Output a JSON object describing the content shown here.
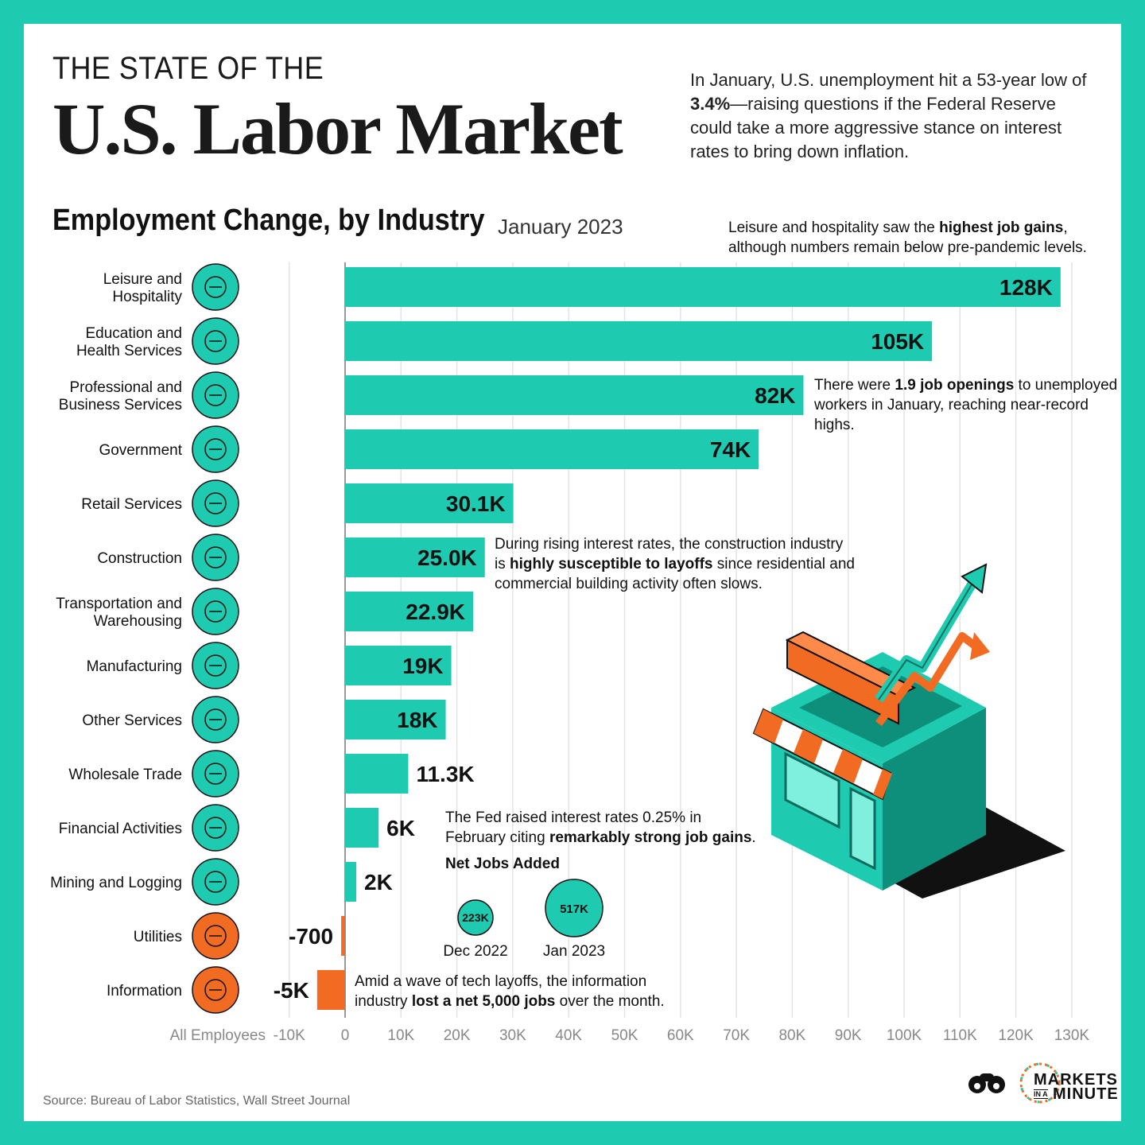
{
  "header": {
    "title_top": "THE STATE OF THE",
    "title_main": "U.S. Labor Market",
    "intro_1": "In January, U.S. unemployment hit a 53-year low of ",
    "intro_bold": "3.4%",
    "intro_2": "—raising questions if the Federal Reserve could take a more aggressive stance on interest rates to bring down inflation."
  },
  "colors": {
    "frame": "#1ecbb0",
    "bar_positive": "#1ecbb0",
    "bar_negative": "#f26b22",
    "icon_positive": "#1ecbb0",
    "icon_negative": "#f26b22"
  },
  "annotations": {
    "leisure_1": "Leisure and hospitality saw the ",
    "leisure_bold": "highest job gains",
    "leisure_2": ",",
    "leisure_3": "although numbers remain below pre-pandemic levels.",
    "openings_1": "There were ",
    "openings_bold": "1.9 job openings",
    "openings_2": " to unemployed",
    "openings_3": "workers in January, reaching near-record highs.",
    "construction_1": "During rising interest rates, the construction industry",
    "construction_2": "is ",
    "construction_bold": "highly susceptible to layoffs",
    "construction_3": " since residential and",
    "construction_4": "commercial building activity often slows.",
    "fed_1": "The Fed raised interest rates 0.25% in",
    "fed_2": "February citing ",
    "fed_bold": "remarkably strong job gains",
    "fed_3": ".",
    "info_1": "Amid a wave of tech layoffs, the information",
    "info_2": "industry ",
    "info_bold": "lost a net 5,000 jobs",
    "info_3": " over the month."
  },
  "net_jobs": {
    "title": "Net Jobs Added",
    "items": [
      {
        "value": 223,
        "label": "223K",
        "period": "Dec 2022"
      },
      {
        "value": 517,
        "label": "517K",
        "period": "Jan 2023"
      }
    ]
  },
  "chart_data": {
    "type": "bar",
    "orientation": "horizontal",
    "title": "Employment Change, by Industry",
    "subtitle": "January 2023",
    "xlabel": "All Employees",
    "xlim": [
      -10000,
      130000
    ],
    "xticks": [
      -10000,
      0,
      10000,
      20000,
      30000,
      40000,
      50000,
      60000,
      70000,
      80000,
      90000,
      100000,
      110000,
      120000,
      130000
    ],
    "xtick_labels": [
      "-10K",
      "0",
      "10K",
      "20K",
      "30K",
      "40K",
      "50K",
      "60K",
      "70K",
      "80K",
      "90K",
      "100K",
      "110K",
      "120K",
      "130K"
    ],
    "grid": true,
    "categories": [
      [
        "Leisure and",
        "Hospitality"
      ],
      [
        "Education and",
        "Health Services"
      ],
      [
        "Professional and",
        "Business Services"
      ],
      [
        "Government"
      ],
      [
        "Retail Services"
      ],
      [
        "Construction"
      ],
      [
        "Transportation and",
        "Warehousing"
      ],
      [
        "Manufacturing"
      ],
      [
        "Other Services"
      ],
      [
        "Wholesale Trade"
      ],
      [
        "Financial Activities"
      ],
      [
        "Mining and Logging"
      ],
      [
        "Utilities"
      ],
      [
        "Information"
      ]
    ],
    "icons": [
      "beach-palm-icon",
      "books-icon",
      "people-icon",
      "government-building-icon",
      "shopping-bag-icon",
      "crane-hook-icon",
      "warehouse-icon",
      "factory-icon",
      "gear-icon",
      "truck-icon",
      "money-bag-icon",
      "shovel-icon",
      "tools-icon",
      "magnifier-icon"
    ],
    "values": [
      128000,
      105000,
      82000,
      74000,
      30100,
      25000,
      22900,
      19000,
      18000,
      11300,
      6000,
      2000,
      -700,
      -5000
    ],
    "value_labels": [
      "128K",
      "105K",
      "82K",
      "74K",
      "30.1K",
      "25.0K",
      "22.9K",
      "19K",
      "18K",
      "11.3K",
      "6K",
      "2K",
      "-700",
      "-5K"
    ]
  },
  "footer": {
    "source": "Source: Bureau of Labor Statistics, Wall Street Journal",
    "logo_line1": "MARKETS",
    "logo_in_a": "IN A",
    "logo_line2": "MINUTE"
  }
}
